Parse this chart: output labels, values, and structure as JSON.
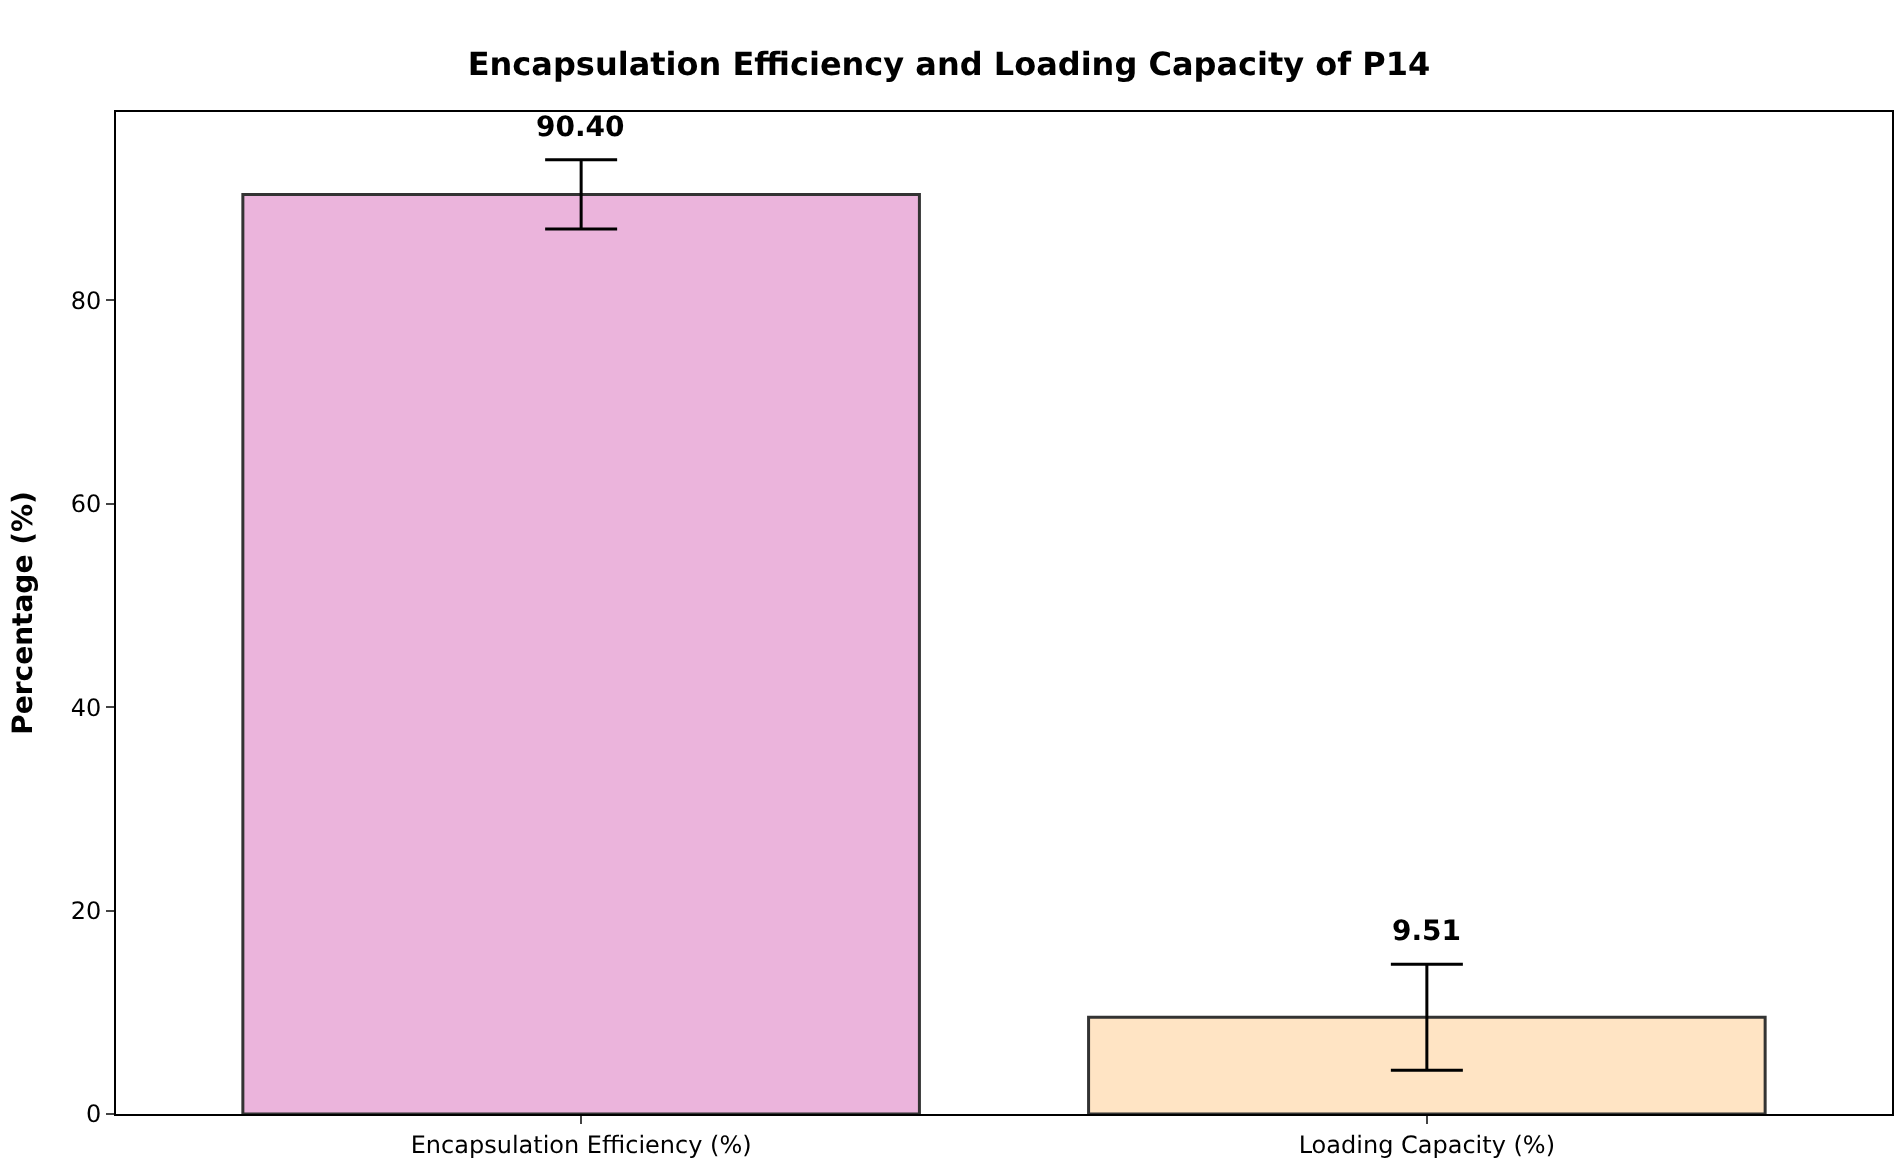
{
  "chart_data": {
    "type": "bar",
    "title": "Encapsulation Efficiency and Loading Capacity of P14",
    "ylabel": "Percentage (%)",
    "categories": [
      "Encapsulation Efficiency (%)",
      "Loading Capacity (%)"
    ],
    "values": [
      90.4,
      9.51
    ],
    "errors": [
      3.4,
      5.2
    ],
    "value_labels": [
      "90.40",
      "9.51"
    ],
    "colors": [
      "#ebb4dc",
      "#ffe4c4"
    ],
    "ylim": [
      0,
      98.5
    ],
    "yticks": [
      0,
      20,
      40,
      60,
      80
    ]
  }
}
